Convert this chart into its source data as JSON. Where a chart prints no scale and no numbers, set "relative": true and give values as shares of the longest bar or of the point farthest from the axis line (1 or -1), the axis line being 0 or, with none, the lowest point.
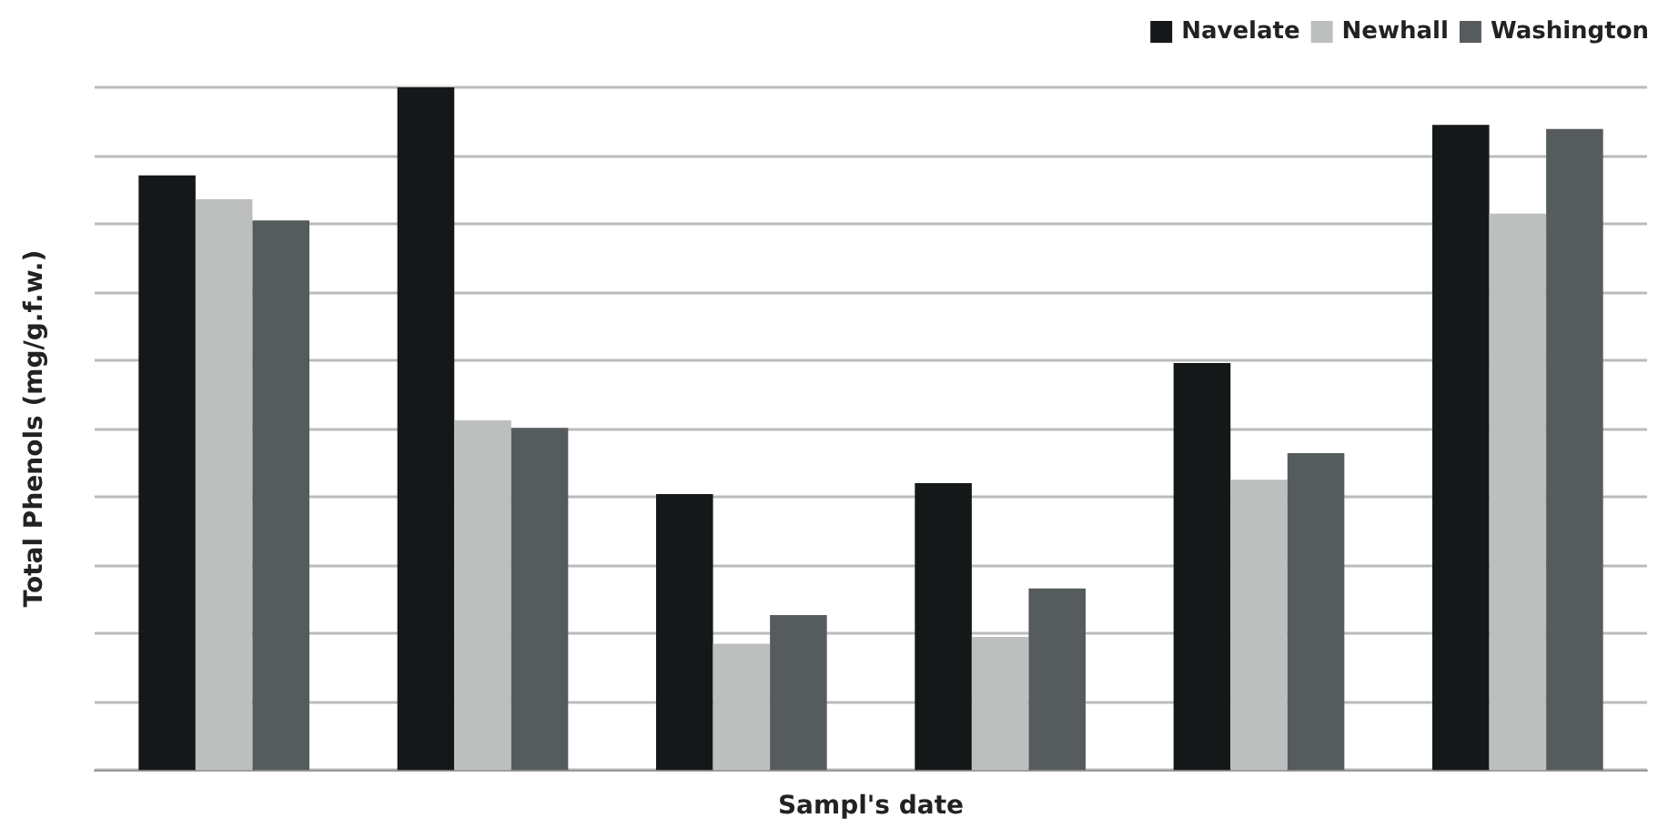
{
  "chart_data": {
    "type": "bar",
    "xlabel": "Sampl's date",
    "ylabel": "Total Phenols (mg/g.f.w.)",
    "categories": [
      null,
      null,
      null,
      null,
      null,
      null
    ],
    "relative": true,
    "grid": "y",
    "legend": "top right",
    "series": [
      {
        "name": "Navelate",
        "color": "#141819",
        "values": [
          0.871,
          1,
          0.404,
          0.42,
          0.596,
          0.945
        ]
      },
      {
        "name": "Newhall",
        "color": "#bcbfbe",
        "values": [
          0.836,
          0.512,
          0.185,
          0.195,
          0.425,
          0.815
        ]
      },
      {
        "name": "Washington",
        "color": "#565b5d",
        "values": [
          0.805,
          0.501,
          0.227,
          0.266,
          0.464,
          0.939
        ]
      }
    ]
  }
}
